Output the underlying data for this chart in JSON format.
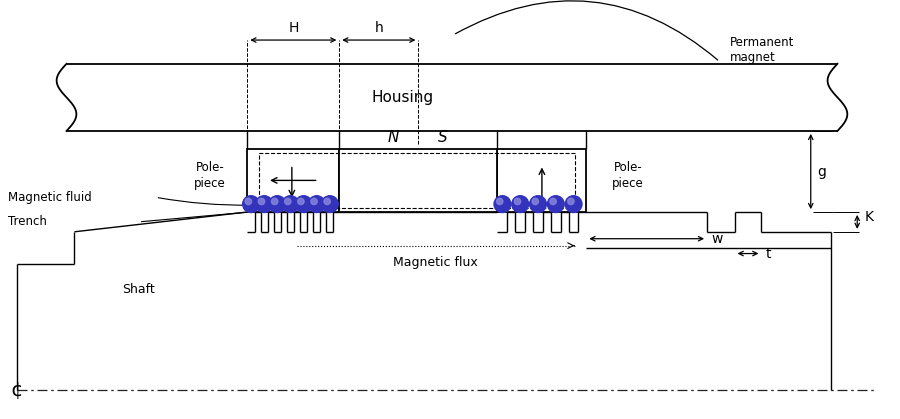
{
  "fig_width": 9.0,
  "fig_height": 4.19,
  "dpi": 100,
  "bg_color": "#ffffff",
  "lc": "#000000",
  "blue_color": "#3333bb",
  "blue_light": "#9999ee",
  "labels": {
    "H": "H",
    "h": "h",
    "permanent_magnet": "Permanent\nmagnet",
    "housing": "Housing",
    "N": "N",
    "S": "S",
    "pole_piece_left": "Pole-\npiece",
    "pole_piece_right": "Pole-\npiece",
    "magnetic_fluid": "Magnetic fluid",
    "trench": "Trench",
    "shaft": "Shaft",
    "magnetic_flux": "Magnetic flux",
    "w": "w",
    "t": "t",
    "g": "g",
    "K": "K"
  },
  "x_lim": [
    0,
    9.0
  ],
  "y_lim": [
    0,
    4.19
  ]
}
